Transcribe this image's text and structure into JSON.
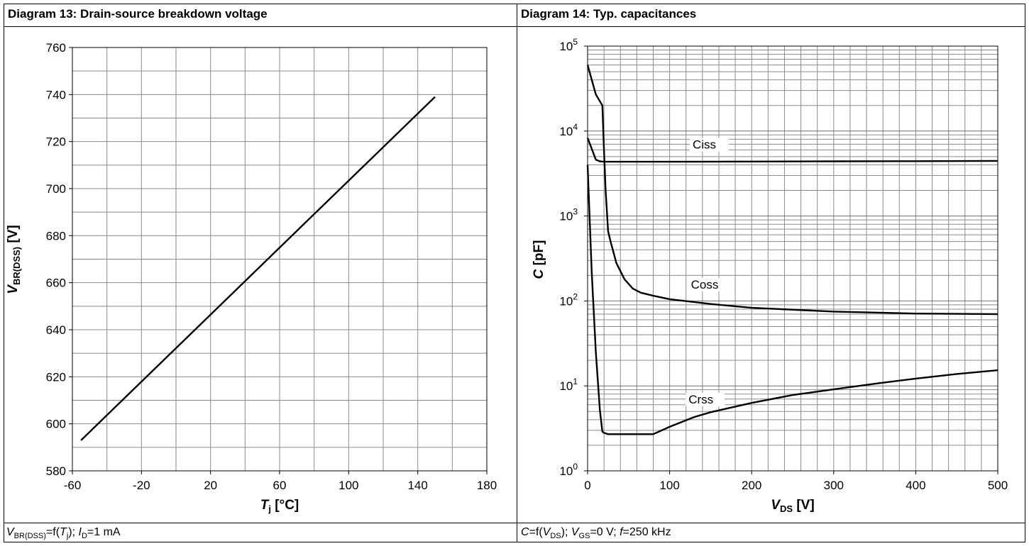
{
  "panels": {
    "left": {
      "title": "Diagram 13: Drain-source breakdown voltage",
      "caption": {
        "p1_italic": "V",
        "p2_sub": "BR(DSS)",
        "p3": "=f(",
        "p4_italic": "T",
        "p5_sub": "j",
        "p6": "); ",
        "p7_italic": "I",
        "p8_sub": "D",
        "p9": "=1 mA"
      }
    },
    "right": {
      "title": "Diagram 14: Typ. capacitances",
      "caption": {
        "p1_italic": "C",
        "p2": "=f(",
        "p3_italic": "V",
        "p4_sub": "DS",
        "p5": "); ",
        "p6_italic": "V",
        "p7_sub": "GS",
        "p8": "=0 V; ",
        "p9_italic": "f",
        "p10": "=250 kHz"
      }
    }
  },
  "chart_data": [
    {
      "type": "line",
      "xlabel": {
        "main": "T",
        "sub": "j",
        "unit": " [°C]"
      },
      "ylabel": {
        "main": "V",
        "sub": "BR(DSS)",
        "unit": " [V]"
      },
      "xlim": [
        -60,
        180
      ],
      "ylim": [
        580,
        760
      ],
      "x_ticks": [
        -60,
        -20,
        20,
        60,
        100,
        140,
        180
      ],
      "y_ticks": [
        580,
        600,
        620,
        640,
        660,
        680,
        700,
        720,
        740,
        760
      ],
      "x_minor_step": 20,
      "y_minor_step": 10,
      "grid": true,
      "series": [
        {
          "x": [
            -55,
            150
          ],
          "y": [
            593,
            739
          ]
        }
      ]
    },
    {
      "type": "line",
      "yscale": "log",
      "xlabel": {
        "main": "V",
        "sub": "DS",
        "unit": " [V]"
      },
      "ylabel": {
        "main": "C",
        "unit": " [pF]"
      },
      "xlim": [
        0,
        500
      ],
      "ylim": [
        1,
        100000
      ],
      "x_ticks": [
        0,
        100,
        200,
        300,
        400,
        500
      ],
      "y_ticks": [
        1,
        10,
        100,
        1000,
        10000,
        100000
      ],
      "y_tick_labels": [
        {
          "base": "10",
          "exp": "0"
        },
        {
          "base": "10",
          "exp": "1"
        },
        {
          "base": "10",
          "exp": "2"
        },
        {
          "base": "10",
          "exp": "3"
        },
        {
          "base": "10",
          "exp": "4"
        },
        {
          "base": "10",
          "exp": "5"
        }
      ],
      "x_minor_step": 20,
      "grid": true,
      "series": [
        {
          "name": "Ciss",
          "label_at": [
            128,
            6200
          ],
          "x": [
            0,
            5,
            10,
            15,
            20,
            30,
            50,
            100,
            200,
            300,
            400,
            500
          ],
          "y": [
            8300,
            6200,
            4600,
            4400,
            4350,
            4350,
            4350,
            4350,
            4380,
            4400,
            4420,
            4450
          ]
        },
        {
          "name": "Coss",
          "label_at": [
            126,
            140
          ],
          "x": [
            0,
            10,
            18,
            20,
            22,
            25,
            28,
            35,
            45,
            55,
            65,
            80,
            100,
            150,
            200,
            300,
            400,
            500
          ],
          "y": [
            60000,
            27000,
            20000,
            6000,
            2000,
            660,
            500,
            280,
            180,
            140,
            125,
            115,
            105,
            92,
            83,
            75,
            71,
            70
          ],
          "series_role": "Coss"
        },
        {
          "name": "Crss",
          "label_at": [
            123,
            6.2
          ],
          "x": [
            0,
            5,
            10,
            15,
            18,
            20,
            25,
            40,
            60,
            80,
            100,
            130,
            150,
            200,
            250,
            300,
            350,
            400,
            450,
            500
          ],
          "y": [
            4000,
            220,
            25,
            5.2,
            2.9,
            2.8,
            2.7,
            2.7,
            2.7,
            2.7,
            3.3,
            4.3,
            4.9,
            6.3,
            7.8,
            9.1,
            10.6,
            12.2,
            13.8,
            15.3
          ]
        }
      ]
    }
  ]
}
